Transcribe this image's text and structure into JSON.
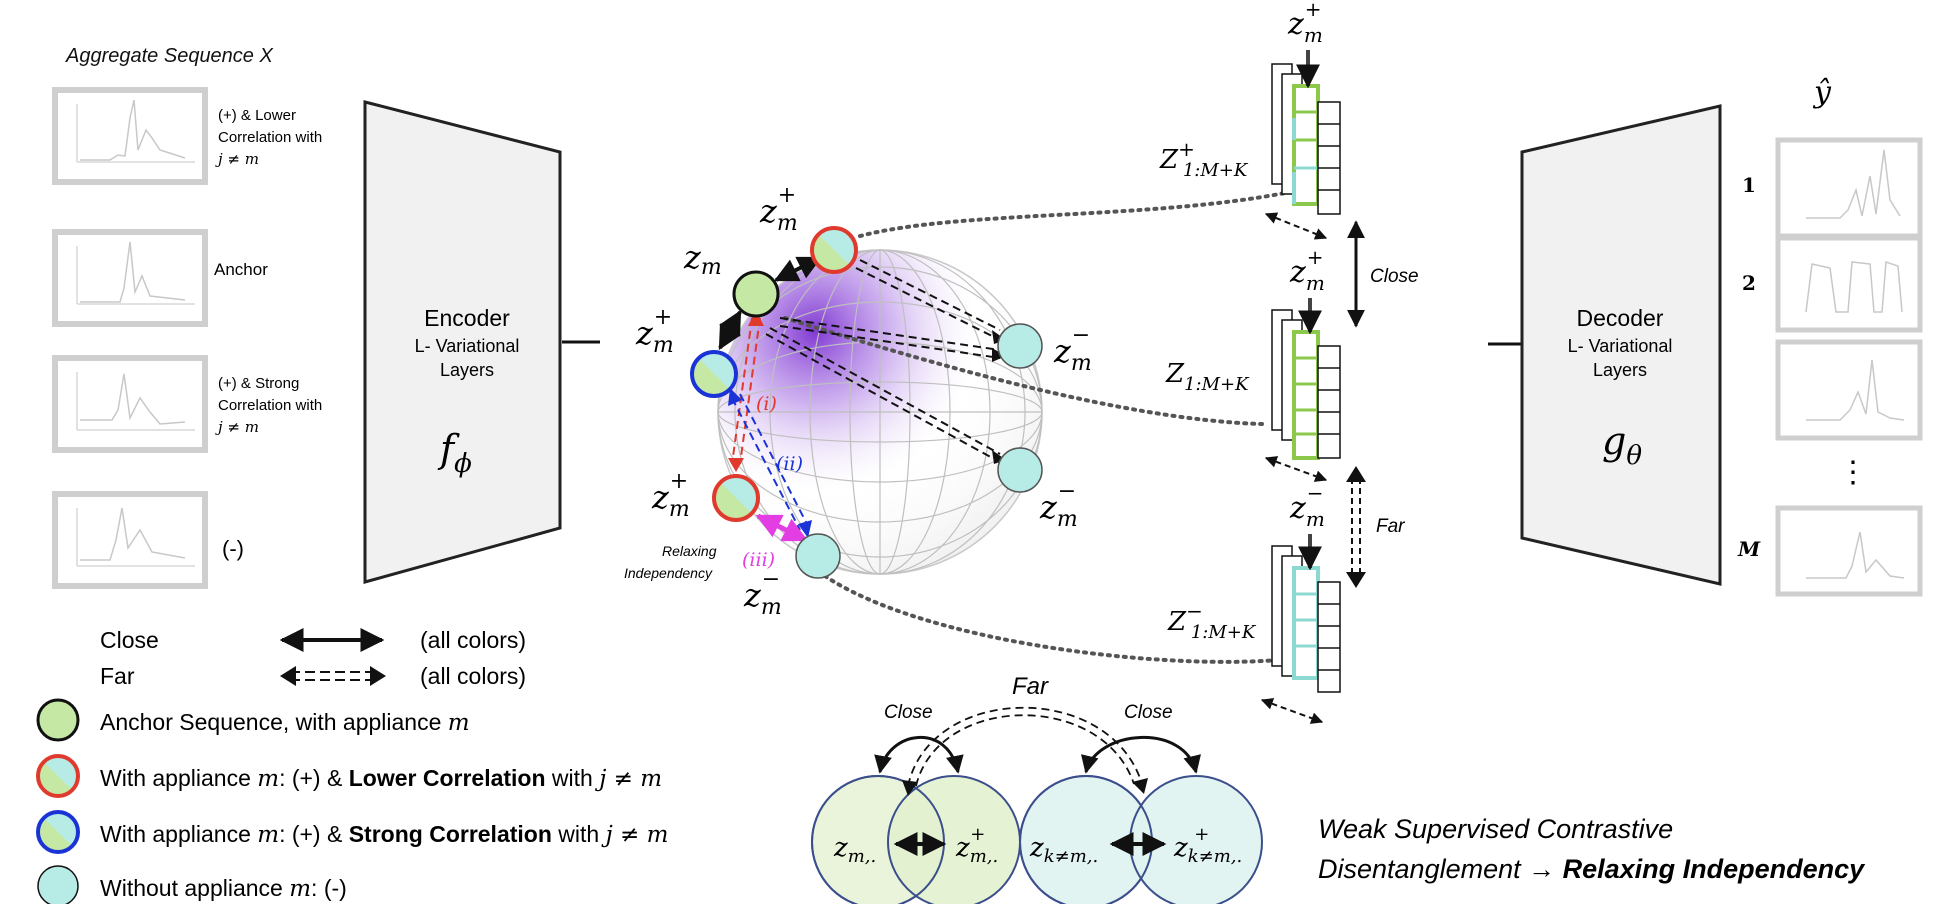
{
  "aggregate_label": "Aggregate Sequence X",
  "input_panels": [
    {
      "label": "(+) & Lower Correlation with j ≠ m"
    },
    {
      "label": "Anchor"
    },
    {
      "label": "(+) & Strong Correlation with j ≠ m"
    },
    {
      "label": "(-)"
    }
  ],
  "encoder": {
    "title": "Encoder",
    "subtitle_line1": "L- Variational",
    "subtitle_line2": "Layers",
    "symbol": "fφ"
  },
  "decoder": {
    "title": "Decoder",
    "subtitle_line1": "L- Variational",
    "subtitle_line2": "Layers",
    "symbol": "gθ"
  },
  "sphere": {
    "nodes": {
      "anchor": "zm",
      "pos_top": "zm+",
      "pos_left": "zm+",
      "pos_bottom": "zm+",
      "neg_right1": "zm−",
      "neg_right2": "zm−",
      "neg_bottom": "zm−"
    },
    "arrow_labels": {
      "i": "(i)",
      "ii": "(ii)",
      "iii": "(iii)"
    },
    "relaxing_line1": "Relaxing",
    "relaxing_line2": "Independency"
  },
  "stacks": [
    {
      "top_label": "zm+",
      "side_label": "Z+1:M+K"
    },
    {
      "top_label": "zm+",
      "side_label": "Z1:M+K"
    },
    {
      "top_label": "zm−",
      "side_label": "Z−1:M+K"
    }
  ],
  "close_label": "Close",
  "far_label": "Far",
  "output": {
    "yhat": "ŷ",
    "indices": [
      "1",
      "2",
      "⋮",
      "M"
    ]
  },
  "legend": {
    "close_label": "Close",
    "close_note": "(all colors)",
    "far_label": "Far",
    "far_note": "(all colors)",
    "anchor_text": "Anchor Sequence, with appliance m",
    "lower_prefix": "With appliance m: (+)  & ",
    "lower_bold": "Lower Correlation",
    "lower_suffix": " with j ≠ m",
    "strong_prefix": "With appliance m: (+)  & ",
    "strong_bold": "Strong Correlation",
    "strong_suffix": " with j ≠ m",
    "without_text": "Without appliance m: (-)"
  },
  "venn": {
    "far_label": "Far",
    "close_left": "Close",
    "close_right": "Close",
    "c1": "zm,.",
    "c2": "z+m,.",
    "c3": "zk≠m,.",
    "c4": "z+k≠m,."
  },
  "caption": {
    "line1": "Weak Supervised Contrastive",
    "line2_prefix": "Disentanglement → ",
    "line2_bold": "Relaxing Independency"
  },
  "colors": {
    "anchor": "#c5e8a4",
    "negative": "#b7ebe6",
    "red_ring": "#e0392d",
    "blue_ring": "#1a33d6",
    "purple": "#8a3fd6",
    "magenta": "#e33ee3"
  },
  "icons": {
    "panel": "mini-timeseries-plot-icon",
    "ellipsis": "vertical-ellipsis-icon"
  }
}
